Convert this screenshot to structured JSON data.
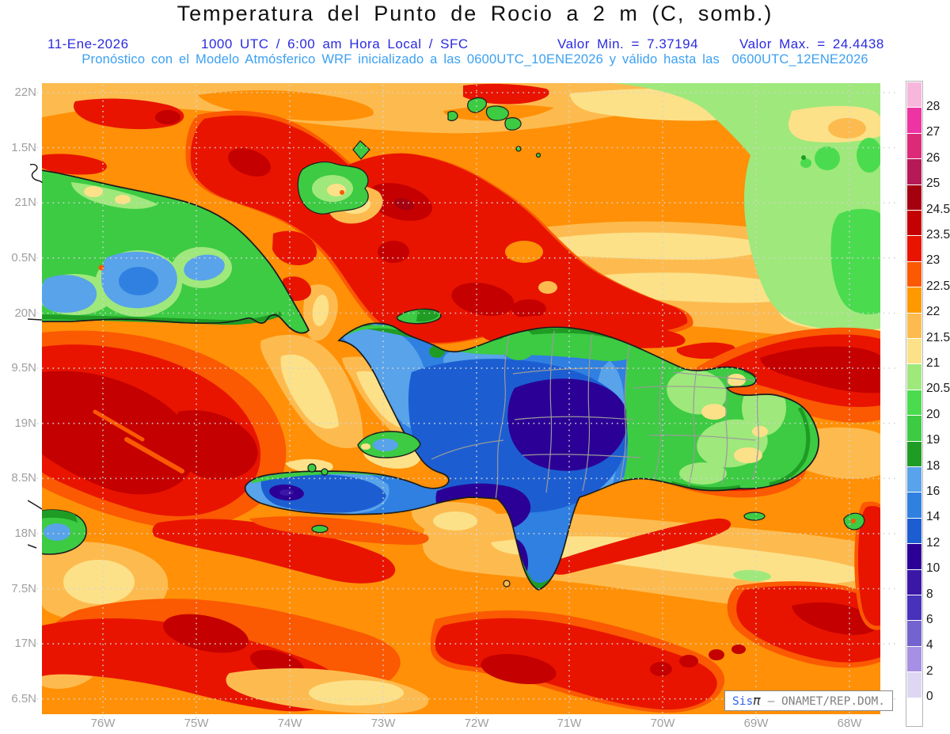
{
  "header": {
    "title": "Temperatura del Punto de Rocio a 2 m (C, somb.)",
    "date": "11-Ene-2026",
    "time": "1000 UTC / 6:00 am Hora Local / SFC",
    "min_label": "Valor Min. = 7.37194",
    "max_label": "Valor Max. = 24.4438",
    "forecast": "Pronóstico con el Modelo Atmósferico WRF inicializado a las 0600UTC_10ENE2026 y válido hasta las  0600UTC_12ENE2026"
  },
  "axes": {
    "y_labels": [
      "22N",
      "1.5N",
      "21N",
      "0.5N",
      "20N",
      "9.5N",
      "19N",
      "8.5N",
      "18N",
      "7.5N",
      "17N",
      "6.5N"
    ],
    "x_labels": [
      "76W",
      "75W",
      "74W",
      "73W",
      "72W",
      "71W",
      "70W",
      "69W",
      "68W"
    ]
  },
  "colorbar": {
    "labels": [
      "28",
      "27",
      "26",
      "25",
      "24.5",
      "23.5",
      "23",
      "22.5",
      "22",
      "21.5",
      "21",
      "20.5",
      "20",
      "19",
      "18",
      "16",
      "14",
      "12",
      "10",
      "8",
      "6",
      "4",
      "2",
      "0"
    ],
    "colors": [
      "#F7B6DC",
      "#EE34A2",
      "#DD2A78",
      "#B51956",
      "#A50010",
      "#C40000",
      "#E81400",
      "#FB5902",
      "#FF9900",
      "#FDBB4F",
      "#FCE189",
      "#9FE87C",
      "#4BDB4F",
      "#3CCB43",
      "#1F9C24",
      "#58A3EA",
      "#2F80E1",
      "#1C5ED2",
      "#2B0096",
      "#3A17A6",
      "#4831BB",
      "#7263CF",
      "#A690E5",
      "#DED7F4",
      "#FFFFFF"
    ]
  },
  "watermark": {
    "sis": "Sis",
    "pi": "π",
    "rest": " – ONAMET/REP.DOM."
  }
}
